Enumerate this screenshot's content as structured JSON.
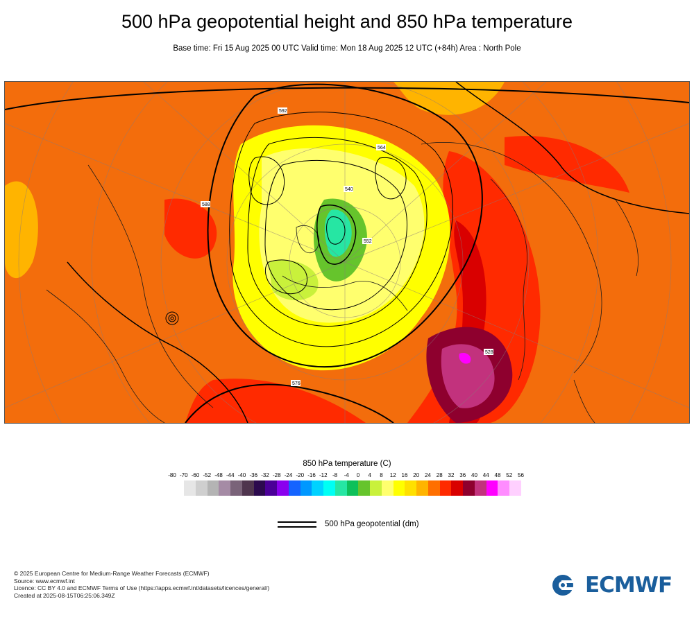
{
  "title": "500 hPa geopotential height and 850 hPa temperature",
  "subtitle": "Base time: Fri 15 Aug 2025 00 UTC Valid time: Mon 18 Aug 2025 12 UTC (+84h) Area : North Pole",
  "map": {
    "contour_labels": [
      "592",
      "588",
      "576",
      "564",
      "552",
      "540",
      "528"
    ]
  },
  "legend": {
    "title": "850 hPa temperature (C)",
    "ticks": [
      "-80",
      "-70",
      "-60",
      "-52",
      "-48",
      "-44",
      "-40",
      "-36",
      "-32",
      "-28",
      "-24",
      "-20",
      "-16",
      "-12",
      "-8",
      "-4",
      "0",
      "4",
      "8",
      "12",
      "16",
      "20",
      "24",
      "28",
      "32",
      "36",
      "40",
      "44",
      "48",
      "52",
      "56"
    ],
    "colors": [
      "#e6e6e6",
      "#cfcfcf",
      "#b4b4b4",
      "#a58ba5",
      "#7a6379",
      "#4f354e",
      "#2c0a4e",
      "#4b0098",
      "#8a00ee",
      "#1463ff",
      "#0098ff",
      "#00d2ff",
      "#00fff4",
      "#26e6a3",
      "#0ec05a",
      "#66c42c",
      "#c9f13b",
      "#ffff6e",
      "#ffff00",
      "#ffe000",
      "#ffb400",
      "#ff6f00",
      "#ff2a00",
      "#d90000",
      "#8e002e",
      "#c2327d",
      "#ff00ff",
      "#ff8cff",
      "#ffd0ff",
      "#f0d8f0",
      "#e6e6e6"
    ],
    "line_label": "500 hPa geopotential (dm)"
  },
  "credits": [
    "© 2025 European Centre for Medium-Range Weather Forecasts (ECMWF)",
    "Source: www.ecmwf.int",
    "Licence: CC BY 4.0 and ECMWF Terms of Use (https://apps.ecmwf.int/datasets/licences/general/)",
    "Created at 2025-08-15T06:25:06.349Z"
  ],
  "logo": {
    "text": "ECMWF",
    "color": "#1a5e9c"
  }
}
